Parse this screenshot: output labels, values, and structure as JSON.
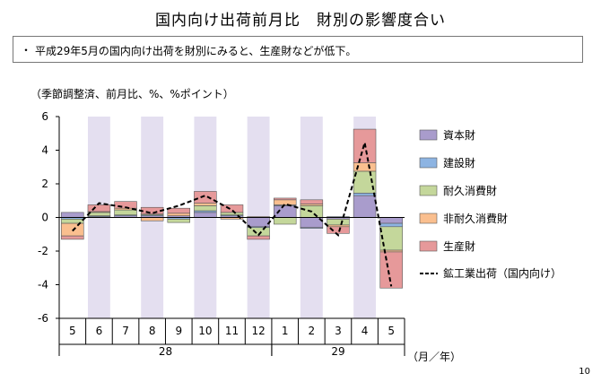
{
  "title": "国内向け出荷前月比　財別の影響度合い",
  "note": {
    "bullet": "・",
    "text": "平成29年5月の国内向け出荷を財別にみると、生産財などが低下。"
  },
  "unit_label": "（季節調整済、前月比、%、%ポイント）",
  "page_number": "10",
  "chart_data": {
    "type": "bar",
    "stacked": true,
    "categories": [
      "5",
      "6",
      "7",
      "8",
      "9",
      "10",
      "11",
      "12",
      "1",
      "2",
      "3",
      "4",
      "5"
    ],
    "year_labels": [
      {
        "label": "28",
        "from": 0,
        "to": 7
      },
      {
        "label": "29",
        "from": 8,
        "to": 12
      }
    ],
    "x_unit_label": "（月／年）",
    "ylim": [
      -6,
      6
    ],
    "yticks": [
      6,
      4,
      2,
      0,
      -2,
      -4,
      -6
    ],
    "shaded_categories": [
      1,
      3,
      5,
      7,
      9,
      11
    ],
    "series": [
      {
        "name": "資本財",
        "color": "#a99ccc",
        "values": [
          0.3,
          0.05,
          0.1,
          0.1,
          0.1,
          0.3,
          0.1,
          -0.55,
          0.7,
          -0.6,
          -0.1,
          1.3,
          -0.35
        ]
      },
      {
        "name": "建設財",
        "color": "#8db4e2",
        "values": [
          -0.1,
          0.05,
          0.05,
          0.05,
          -0.1,
          0.1,
          0.05,
          -0.05,
          0.05,
          -0.05,
          0.05,
          0.15,
          -0.2
        ]
      },
      {
        "name": "耐久消費財",
        "color": "#c4d79b",
        "values": [
          -0.25,
          0.2,
          0.3,
          0.05,
          -0.2,
          0.3,
          0.15,
          -0.5,
          -0.4,
          0.7,
          -0.35,
          1.3,
          -1.4
        ]
      },
      {
        "name": "非耐久消費財",
        "color": "#fabf8f",
        "values": [
          -0.75,
          0.05,
          0.1,
          -0.2,
          0.15,
          0.15,
          -0.1,
          0.05,
          0.3,
          0.1,
          -0.1,
          0.5,
          -0.1
        ]
      },
      {
        "name": "生産財",
        "color": "#e6999a",
        "values": [
          -0.2,
          0.4,
          0.4,
          0.4,
          0.3,
          0.7,
          0.45,
          -0.2,
          0.1,
          0.25,
          -0.4,
          2.0,
          -2.15
        ]
      }
    ],
    "line_series": {
      "name": "鉱工業出荷（国内向け）",
      "values": [
        -0.8,
        0.85,
        0.6,
        0.25,
        0.7,
        1.3,
        0.45,
        -1.05,
        0.8,
        0.35,
        -1.05,
        4.45,
        -4.1
      ]
    },
    "legend_position": "right"
  }
}
